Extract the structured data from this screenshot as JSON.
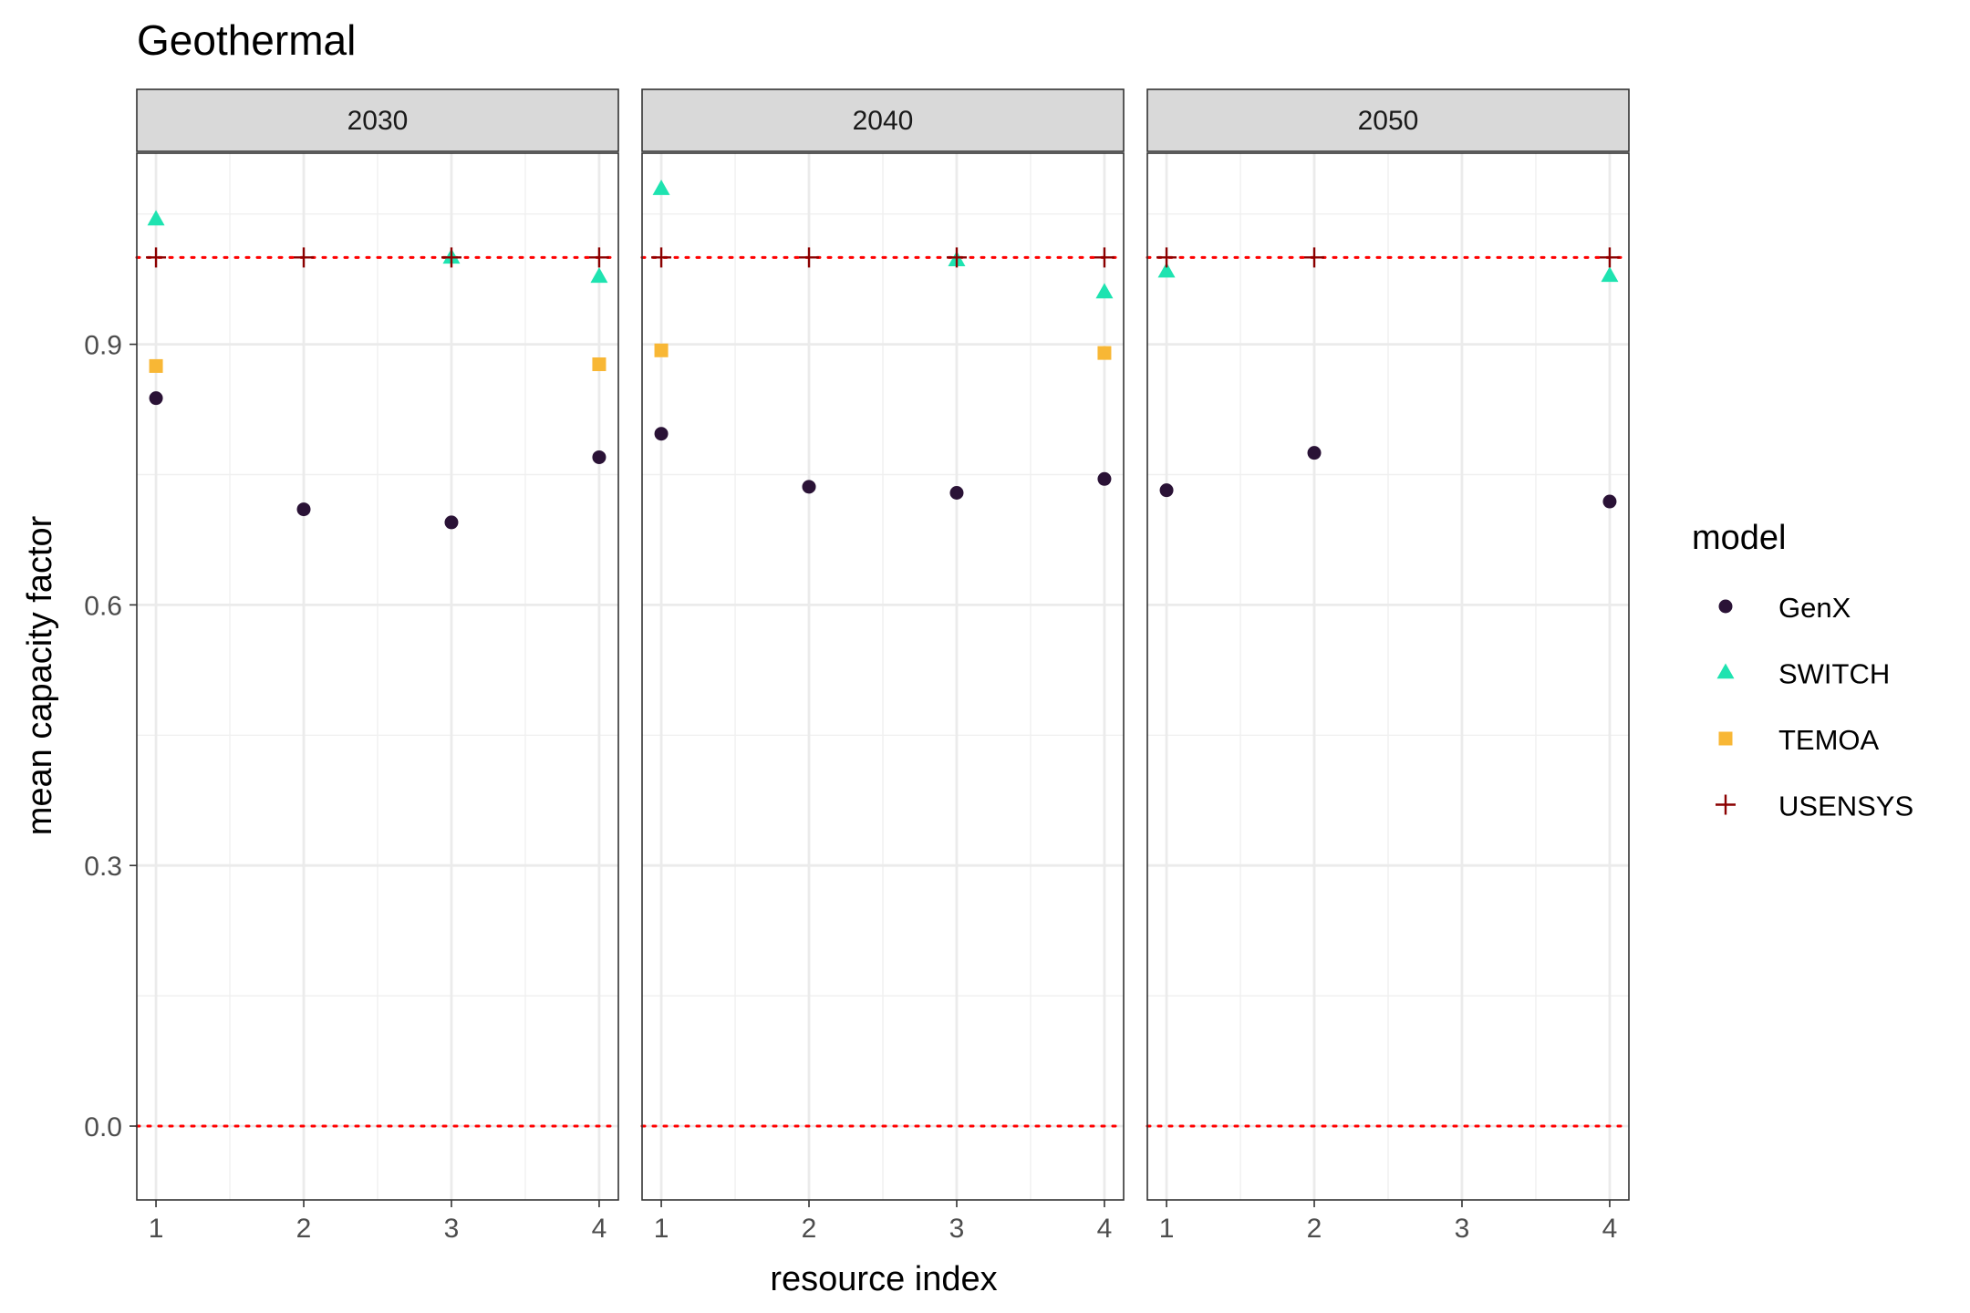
{
  "chart_data": {
    "type": "scatter",
    "title": "Geothermal",
    "xlabel": "resource index",
    "ylabel": "mean capacity factor",
    "ylim": [
      -0.085,
      1.12
    ],
    "xlim": [
      0.87,
      4.13
    ],
    "x_ticks": [
      1,
      2,
      3,
      4
    ],
    "y_ticks": [
      0.0,
      0.3,
      0.6,
      0.9
    ],
    "y_tick_labels": [
      "0.0",
      "0.3",
      "0.6",
      "0.9"
    ],
    "grid": true,
    "facet_by": "year",
    "facets": [
      "2030",
      "2040",
      "2050"
    ],
    "reference_lines": [
      0,
      1
    ],
    "reference_line_color": "#ff0000",
    "legend": {
      "title": "model",
      "position": "right",
      "entries": [
        {
          "name": "GenX",
          "shape": "circle",
          "color": "#2a1236"
        },
        {
          "name": "SWITCH",
          "shape": "triangle",
          "color": "#1ee3b0"
        },
        {
          "name": "TEMOA",
          "shape": "square",
          "color": "#f8b735"
        },
        {
          "name": "USENSYS",
          "shape": "plus",
          "color": "#8b0000"
        }
      ]
    },
    "series": [
      {
        "name": "GenX",
        "points": [
          {
            "facet": "2030",
            "x": 1,
            "y": 0.838
          },
          {
            "facet": "2030",
            "x": 2,
            "y": 0.71
          },
          {
            "facet": "2030",
            "x": 3,
            "y": 0.695
          },
          {
            "facet": "2030",
            "x": 4,
            "y": 0.77
          },
          {
            "facet": "2040",
            "x": 1,
            "y": 0.797
          },
          {
            "facet": "2040",
            "x": 2,
            "y": 0.736
          },
          {
            "facet": "2040",
            "x": 3,
            "y": 0.729
          },
          {
            "facet": "2040",
            "x": 4,
            "y": 0.745
          },
          {
            "facet": "2050",
            "x": 1,
            "y": 0.732
          },
          {
            "facet": "2050",
            "x": 2,
            "y": 0.775
          },
          {
            "facet": "2050",
            "x": 4,
            "y": 0.719
          }
        ]
      },
      {
        "name": "SWITCH",
        "points": [
          {
            "facet": "2030",
            "x": 1,
            "y": 1.044
          },
          {
            "facet": "2030",
            "x": 3,
            "y": 1.0
          },
          {
            "facet": "2030",
            "x": 4,
            "y": 0.978
          },
          {
            "facet": "2040",
            "x": 1,
            "y": 1.079
          },
          {
            "facet": "2040",
            "x": 3,
            "y": 0.997
          },
          {
            "facet": "2040",
            "x": 4,
            "y": 0.96
          },
          {
            "facet": "2050",
            "x": 1,
            "y": 0.984
          },
          {
            "facet": "2050",
            "x": 4,
            "y": 0.979
          }
        ]
      },
      {
        "name": "TEMOA",
        "points": [
          {
            "facet": "2030",
            "x": 1,
            "y": 0.875
          },
          {
            "facet": "2030",
            "x": 4,
            "y": 0.877
          },
          {
            "facet": "2040",
            "x": 1,
            "y": 0.893
          },
          {
            "facet": "2040",
            "x": 4,
            "y": 0.89
          }
        ]
      },
      {
        "name": "USENSYS",
        "points": [
          {
            "facet": "2030",
            "x": 1,
            "y": 1.0
          },
          {
            "facet": "2030",
            "x": 2,
            "y": 1.0
          },
          {
            "facet": "2030",
            "x": 3,
            "y": 1.0
          },
          {
            "facet": "2030",
            "x": 4,
            "y": 1.0
          },
          {
            "facet": "2040",
            "x": 1,
            "y": 1.0
          },
          {
            "facet": "2040",
            "x": 2,
            "y": 1.0
          },
          {
            "facet": "2040",
            "x": 3,
            "y": 1.0
          },
          {
            "facet": "2040",
            "x": 4,
            "y": 1.0
          },
          {
            "facet": "2050",
            "x": 1,
            "y": 1.0
          },
          {
            "facet": "2050",
            "x": 2,
            "y": 1.0
          },
          {
            "facet": "2050",
            "x": 4,
            "y": 1.0
          }
        ]
      }
    ]
  }
}
